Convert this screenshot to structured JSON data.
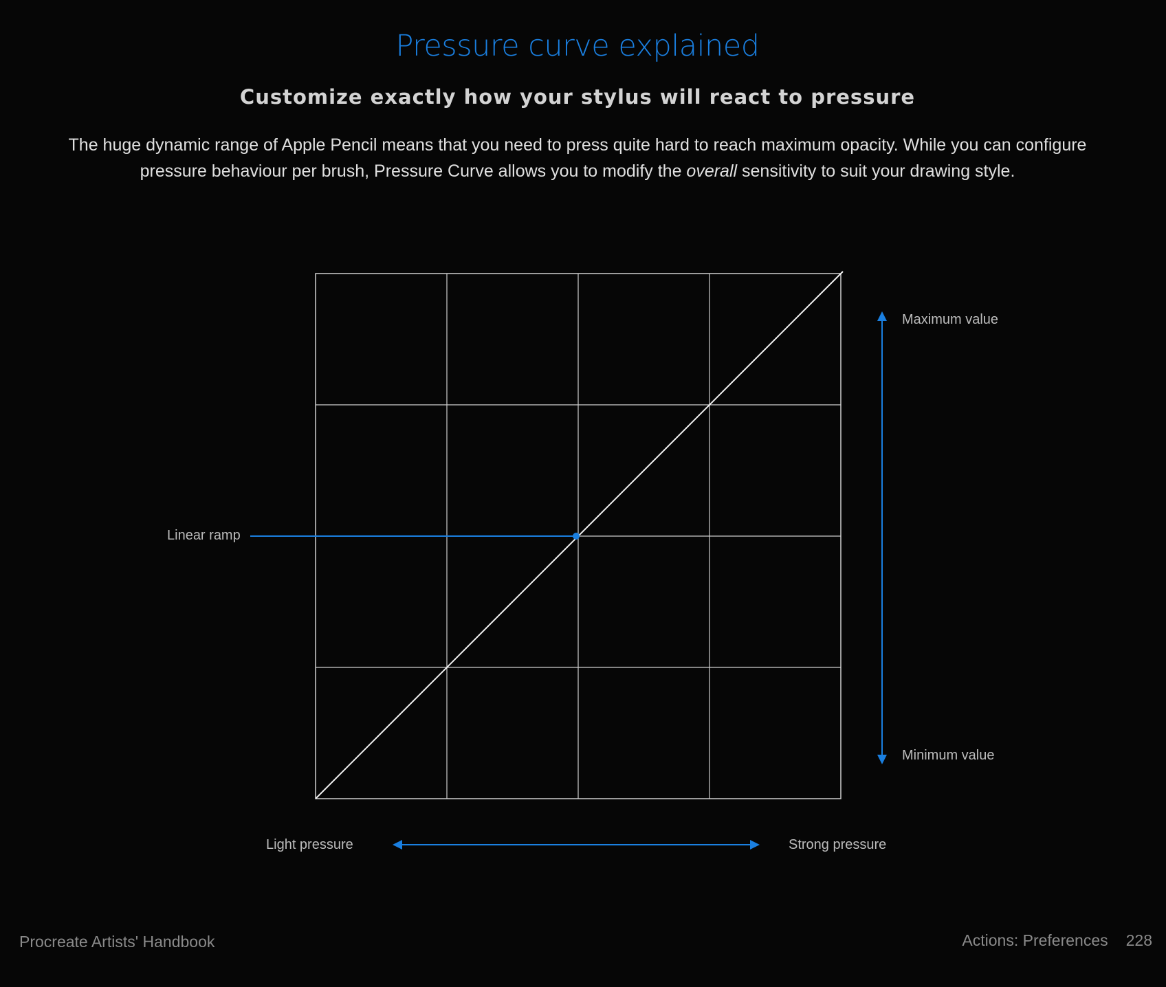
{
  "header": {
    "title": "Pressure curve explained",
    "subtitle": "Customize exactly how your stylus will react to pressure"
  },
  "body": {
    "paragraph_part1": "The huge dynamic range of Apple Pencil means that you need to press quite hard to reach maximum opacity. While you can configure pressure behaviour per brush, Pressure Curve allows you to modify the ",
    "paragraph_emphasis": "overall",
    "paragraph_part2": " sensitivity to suit your drawing style."
  },
  "diagram": {
    "grid_divisions": 4,
    "curve_points": [
      [
        0,
        0
      ],
      [
        1,
        1
      ]
    ],
    "linear_ramp_point": [
      0.5,
      0.5
    ],
    "labels": {
      "linear_ramp": "Linear ramp",
      "maximum_value": "Maximum value",
      "minimum_value": "Minimum value",
      "light_pressure": "Light pressure",
      "strong_pressure": "Strong pressure"
    }
  },
  "footer": {
    "book_title": "Procreate Artists' Handbook",
    "section": "Actions: Preferences",
    "page_number": "228"
  },
  "colors": {
    "accent": "#1a7fe0",
    "background": "#060606",
    "grid_line": "#cfcfcf",
    "curve_line": "#f2f2f2"
  }
}
